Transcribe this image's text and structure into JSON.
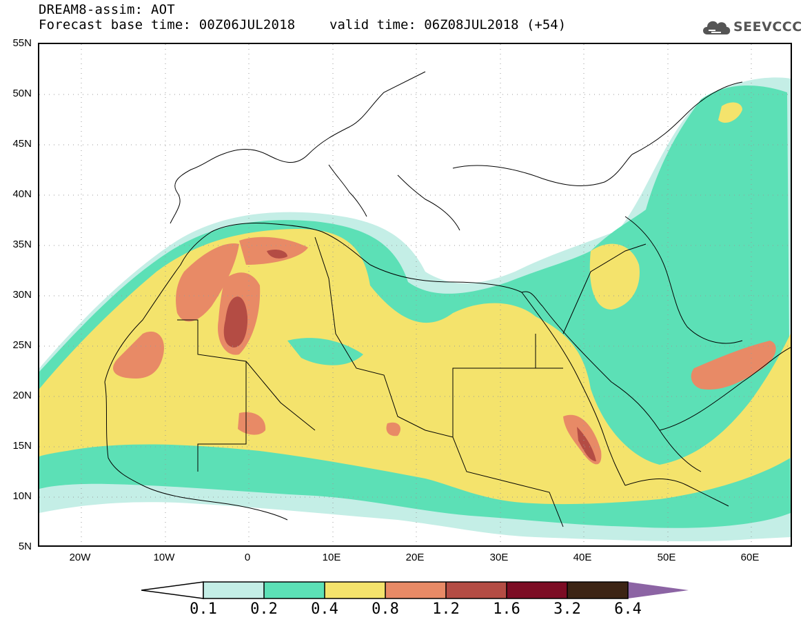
{
  "header": {
    "line1": "DREAM8-assim: AOT",
    "line2": "Forecast base time: 00Z06JUL2018",
    "valid": "valid time: 06Z08JUL2018 (+54)",
    "logo_text": "SEEVCCC"
  },
  "map": {
    "lat_labels": [
      "55N",
      "50N",
      "45N",
      "40N",
      "35N",
      "30N",
      "25N",
      "20N",
      "15N",
      "10N",
      "5N"
    ],
    "lon_labels": [
      "20W",
      "10W",
      "0",
      "10E",
      "20E",
      "30E",
      "40E",
      "50E",
      "60E"
    ],
    "colors": {
      "c01": "#c4eee6",
      "c02": "#5ce0b6",
      "c04": "#f4e36c",
      "c08": "#e88a66",
      "c12": "#b44c44",
      "c16": "#7c0c24",
      "c32": "#3c2414",
      "c64": "#8c64a4",
      "coast": "#000000"
    }
  },
  "colorbar": {
    "labels": [
      "0.1",
      "0.2",
      "0.4",
      "0.8",
      "1.2",
      "1.6",
      "3.2",
      "6.4"
    ]
  }
}
